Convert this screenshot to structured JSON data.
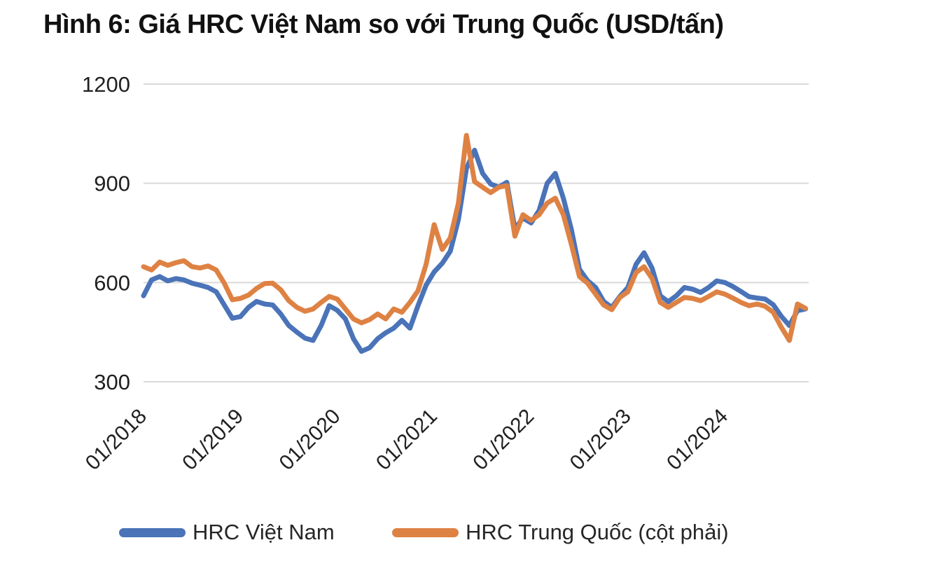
{
  "title": "Hình 6: Giá HRC Việt Nam so với Trung Quốc (USD/tấn)",
  "legend": {
    "items": [
      {
        "label": "HRC Việt Nam",
        "color": "#4A73B8"
      },
      {
        "label": "HRC Trung Quốc (cột phải)",
        "color": "#DE8244"
      }
    ]
  },
  "chart_data": {
    "type": "line",
    "title": "Hình 6: Giá HRC Việt Nam so với Trung Quốc (USD/tấn)",
    "value_unit": "USD/tấn",
    "x_start": "01/2018",
    "x_end": "11/2024",
    "x_interval": "month",
    "n_points": 83,
    "x_tick_labels": [
      "01/2018",
      "01/2019",
      "01/2020",
      "01/2021",
      "01/2022",
      "01/2023",
      "01/2024"
    ],
    "x_tick_month_indices": [
      0,
      12,
      24,
      36,
      48,
      60,
      72
    ],
    "y_ticks": [
      300,
      600,
      900,
      1200
    ],
    "ylim": [
      300,
      1200
    ],
    "grid": "horizontal",
    "legend_position": "bottom",
    "series": [
      {
        "name": "HRC Việt Nam",
        "color": "#4A73B8",
        "values": [
          560,
          608,
          618,
          605,
          612,
          608,
          598,
          592,
          585,
          572,
          532,
          492,
          497,
          525,
          543,
          535,
          532,
          505,
          470,
          450,
          432,
          425,
          470,
          530,
          516,
          490,
          430,
          392,
          403,
          430,
          448,
          462,
          486,
          462,
          530,
          592,
          632,
          658,
          695,
          790,
          945,
          1000,
          930,
          898,
          888,
          903,
          762,
          795,
          780,
          818,
          900,
          930,
          855,
          760,
          640,
          606,
          585,
          543,
          525,
          558,
          585,
          655,
          690,
          643,
          560,
          542,
          560,
          585,
          580,
          570,
          585,
          605,
          600,
          588,
          573,
          557,
          553,
          550,
          533,
          498,
          470,
          515,
          520
        ]
      },
      {
        "name": "HRC Trung Quốc (cột phải)",
        "color": "#DE8244",
        "values": [
          648,
          638,
          662,
          652,
          660,
          666,
          648,
          644,
          650,
          638,
          598,
          548,
          552,
          562,
          582,
          597,
          598,
          578,
          545,
          525,
          513,
          520,
          540,
          558,
          550,
          520,
          490,
          478,
          488,
          505,
          490,
          520,
          510,
          540,
          575,
          655,
          775,
          700,
          735,
          840,
          1045,
          905,
          888,
          872,
          888,
          893,
          740,
          805,
          788,
          805,
          840,
          855,
          805,
          715,
          618,
          598,
          565,
          532,
          518,
          555,
          572,
          630,
          648,
          612,
          540,
          525,
          540,
          555,
          552,
          545,
          558,
          572,
          565,
          553,
          540,
          530,
          535,
          528,
          510,
          465,
          425,
          535,
          522
        ]
      }
    ]
  },
  "style": {
    "grid_color": "#D9D9D9",
    "axis_label_color": "#212121",
    "line_width": 7
  }
}
